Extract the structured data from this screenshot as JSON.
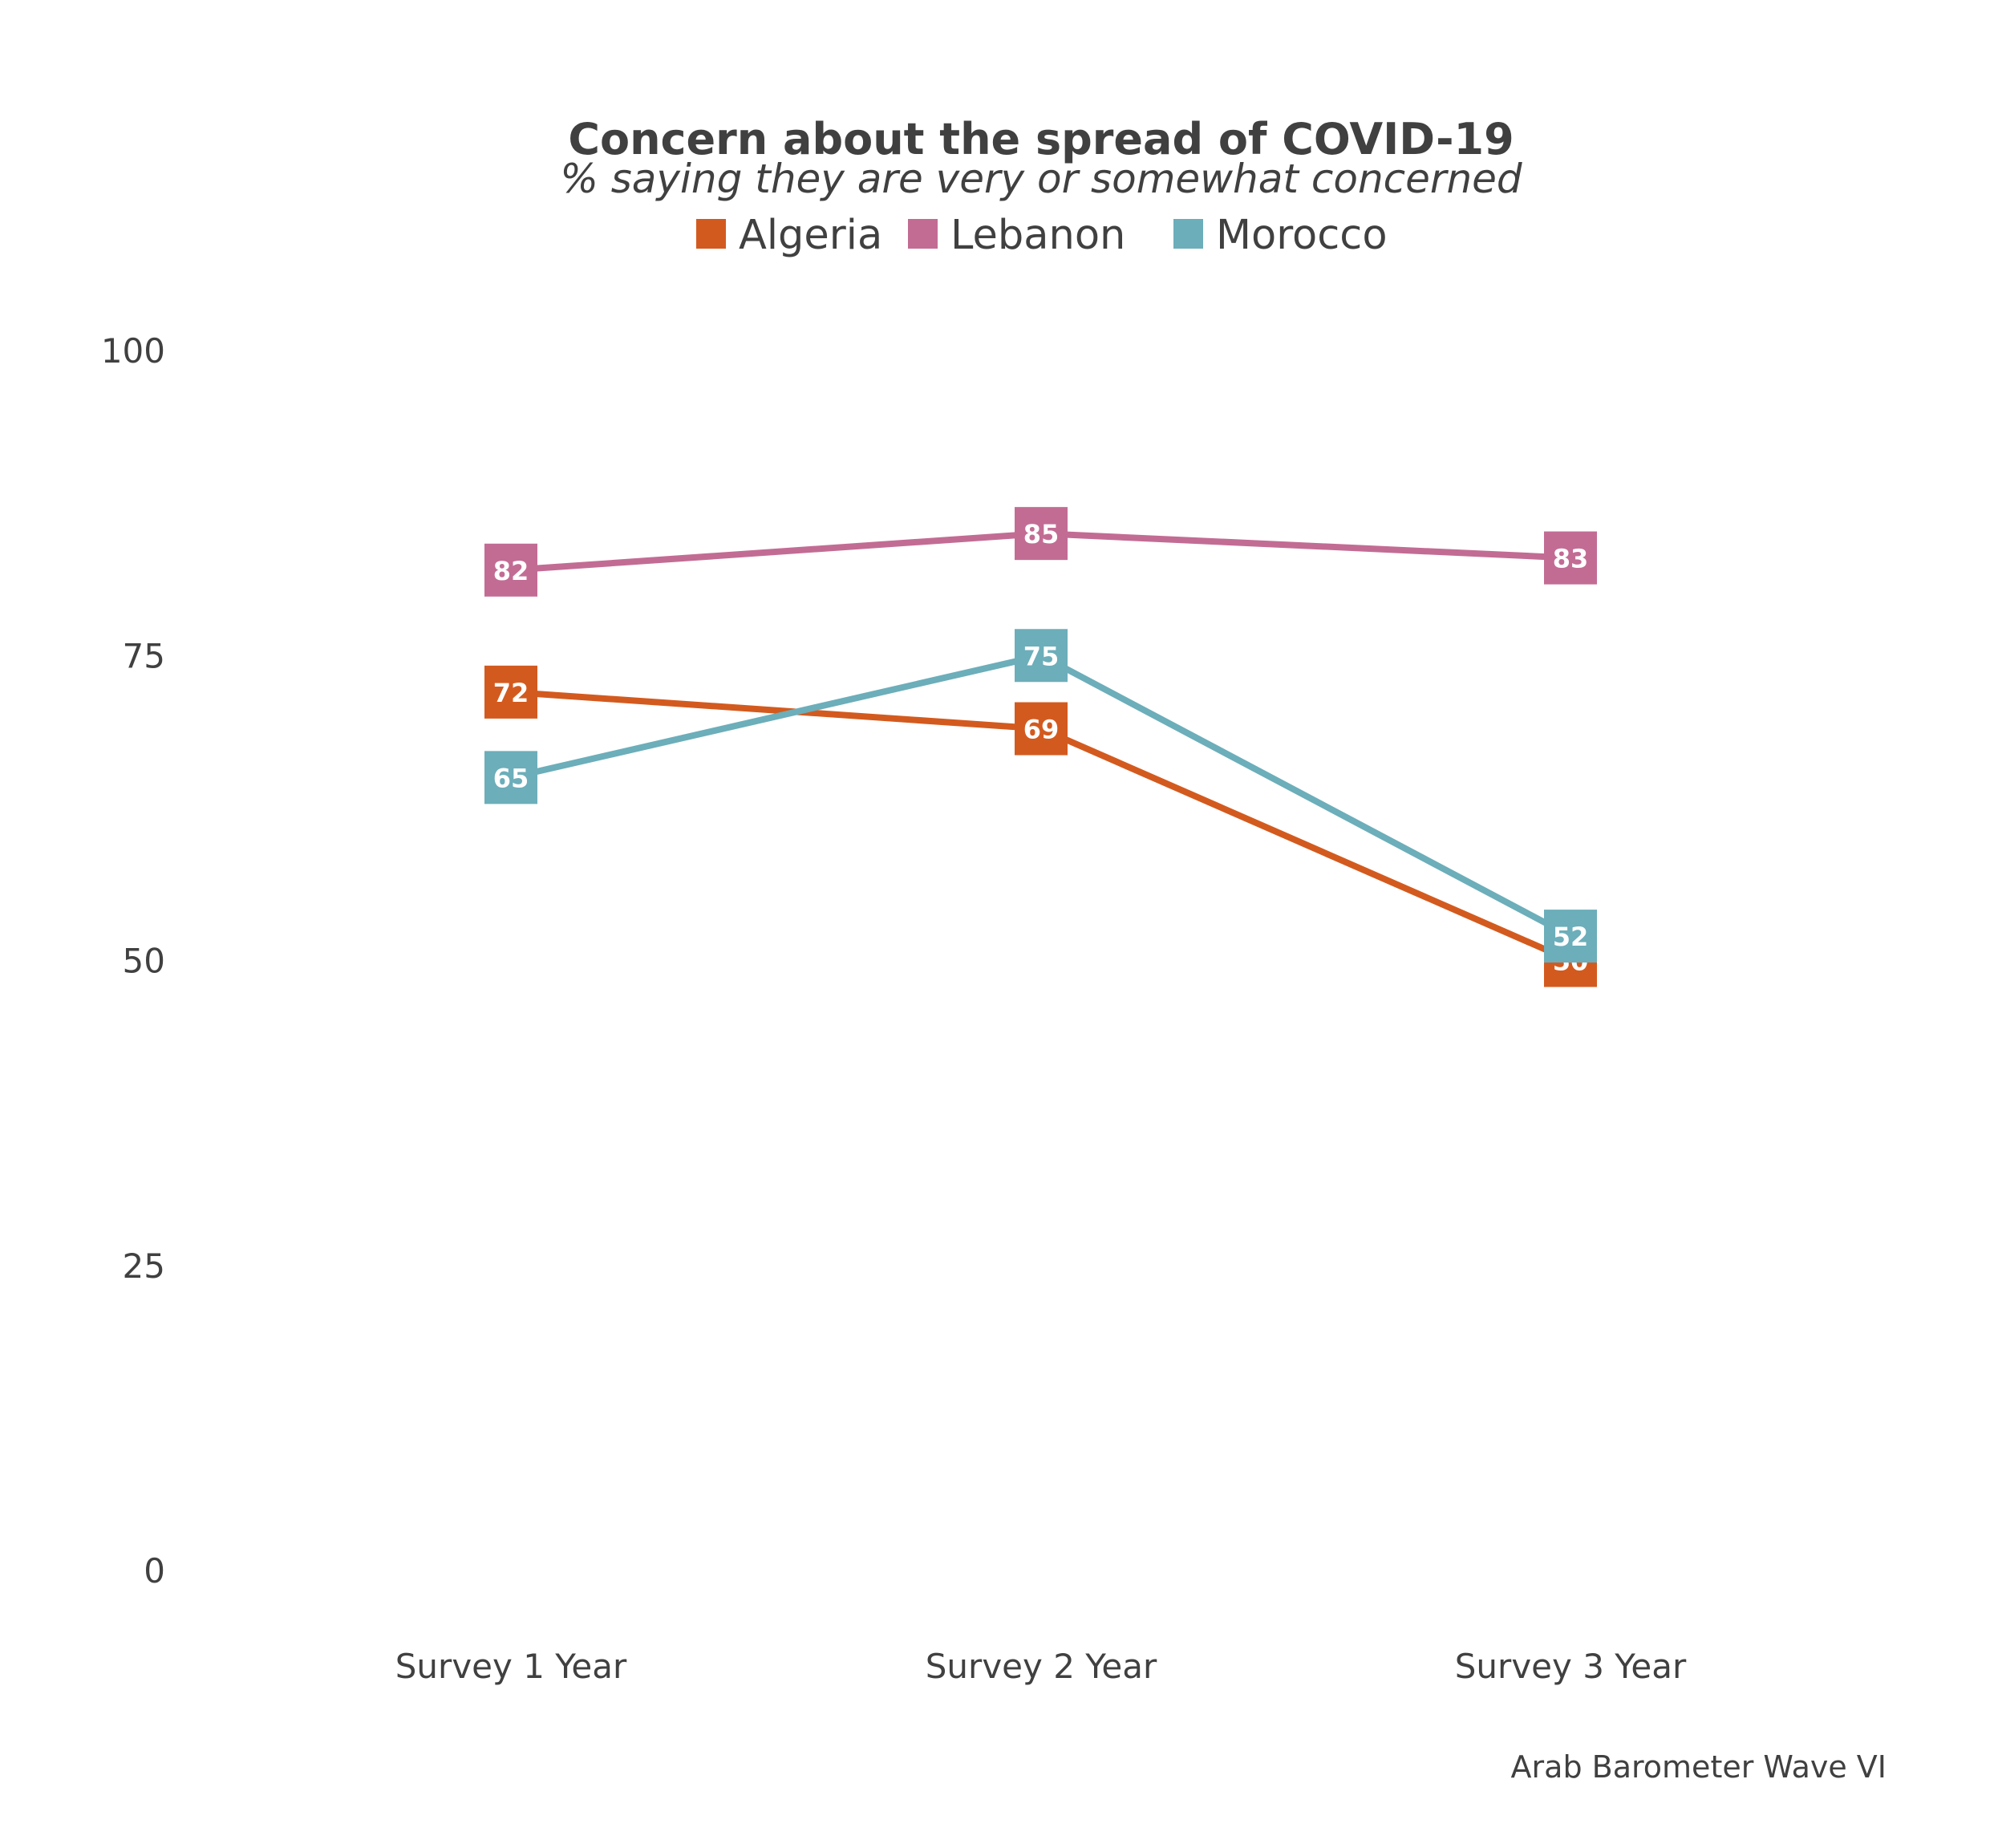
{
  "chart_data": {
    "type": "line",
    "title": "Concern about the spread of COVID-19",
    "subtitle": "% saying they are very or somewhat concerned",
    "categories": [
      "Survey 1 Year",
      "Survey 2 Year",
      "Survey 3 Year"
    ],
    "series": [
      {
        "name": "Algeria",
        "color": "#D35A1E",
        "values": [
          72,
          69,
          50
        ]
      },
      {
        "name": "Lebanon",
        "color": "#C26C94",
        "values": [
          82,
          85,
          83
        ]
      },
      {
        "name": "Morocco",
        "color": "#6CAEBA",
        "values": [
          65,
          75,
          52
        ]
      }
    ],
    "y_ticks": [
      "0",
      "25",
      "50",
      "75",
      "100"
    ],
    "ylim": [
      0,
      100
    ],
    "grid": false,
    "legend_position": "top",
    "caption": "Arab Barometer Wave VI"
  }
}
